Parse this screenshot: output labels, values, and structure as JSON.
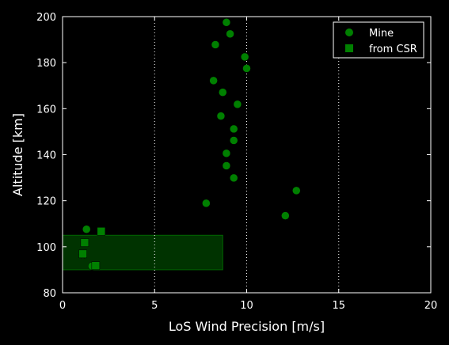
{
  "chart_data": {
    "type": "scatter",
    "xlabel": "LoS Wind Precision [m/s]",
    "ylabel": "Altitude [km]",
    "xlim": [
      0,
      20
    ],
    "ylim": [
      80,
      200
    ],
    "xticks": [
      0,
      5,
      10,
      15,
      20
    ],
    "yticks": [
      80,
      100,
      120,
      140,
      160,
      180,
      200
    ],
    "xtick_labels": [
      "0",
      "5",
      "10",
      "15",
      "20"
    ],
    "ytick_labels": [
      "80",
      "100",
      "120",
      "140",
      "160",
      "180",
      "200"
    ],
    "vertical_gridlines": [
      5,
      10,
      15
    ],
    "grid": "vertical dotted",
    "legend_position": "top-right",
    "background": "#000000",
    "foreground": "#ffffff",
    "series": [
      {
        "name": "Mine",
        "marker": "circle",
        "color": "#008000",
        "points": [
          [
            8.9,
            197.5
          ],
          [
            9.1,
            192.5
          ],
          [
            8.3,
            187.8
          ],
          [
            9.9,
            182.5
          ],
          [
            10.0,
            177.5
          ],
          [
            8.2,
            172.2
          ],
          [
            8.7,
            167.1
          ],
          [
            9.5,
            161.9
          ],
          [
            8.6,
            156.8
          ],
          [
            9.3,
            151.2
          ],
          [
            9.3,
            146.2
          ],
          [
            8.9,
            140.6
          ],
          [
            8.9,
            135.2
          ],
          [
            9.3,
            129.9
          ],
          [
            12.7,
            124.4
          ],
          [
            7.8,
            118.9
          ],
          [
            12.1,
            113.5
          ],
          [
            1.3,
            107.6
          ],
          [
            1.2,
            101.8
          ],
          [
            1.1,
            96.6
          ],
          [
            1.6,
            91.6
          ]
        ]
      },
      {
        "name": "from CSR",
        "marker": "square",
        "color": "#008000",
        "points": [
          [
            2.1,
            106.7
          ],
          [
            1.2,
            101.8
          ],
          [
            1.1,
            96.9
          ],
          [
            1.8,
            91.8
          ]
        ]
      }
    ],
    "shaded_region": {
      "x": [
        0,
        8.7
      ],
      "y": [
        90,
        105
      ],
      "fill": "#003300",
      "stroke": "#006600"
    }
  }
}
